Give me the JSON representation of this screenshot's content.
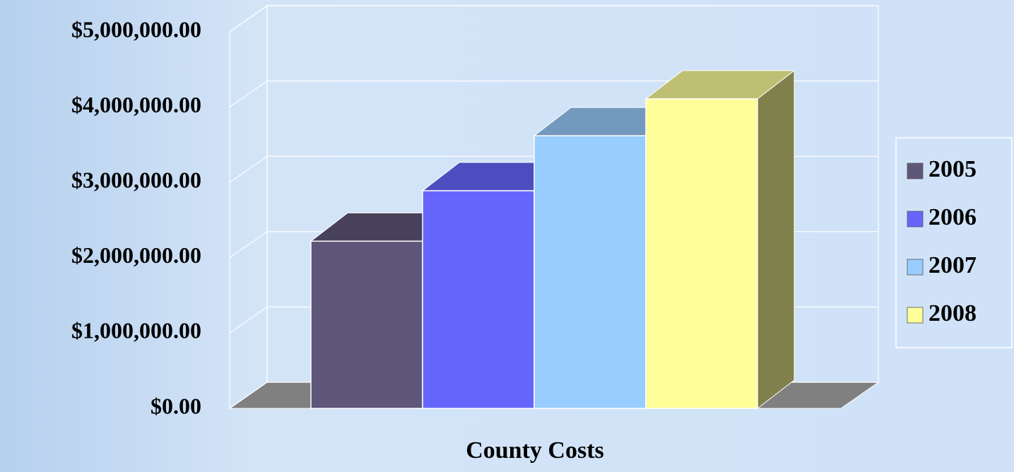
{
  "chart_data": {
    "type": "bar3d",
    "categories": [
      "County Costs"
    ],
    "series": [
      {
        "name": "2005",
        "color": "#5f5779",
        "values": [
          2220000
        ]
      },
      {
        "name": "2006",
        "color": "#6666ff",
        "values": [
          2890000
        ]
      },
      {
        "name": "2007",
        "color": "#99ccff",
        "values": [
          3620000
        ]
      },
      {
        "name": "2008",
        "color": "#ffff99",
        "values": [
          4110000
        ]
      }
    ],
    "ylim": [
      0,
      5000000
    ],
    "yticks": [
      {
        "value": 0,
        "label": "$0.00"
      },
      {
        "value": 1000000,
        "label": "$1,000,000.00"
      },
      {
        "value": 2000000,
        "label": "$2,000,000.00"
      },
      {
        "value": 3000000,
        "label": "$3,000,000.00"
      },
      {
        "value": 4000000,
        "label": "$4,000,000.00"
      },
      {
        "value": 5000000,
        "label": "$5,000,000.00"
      }
    ],
    "grid": true,
    "legend": "right"
  }
}
